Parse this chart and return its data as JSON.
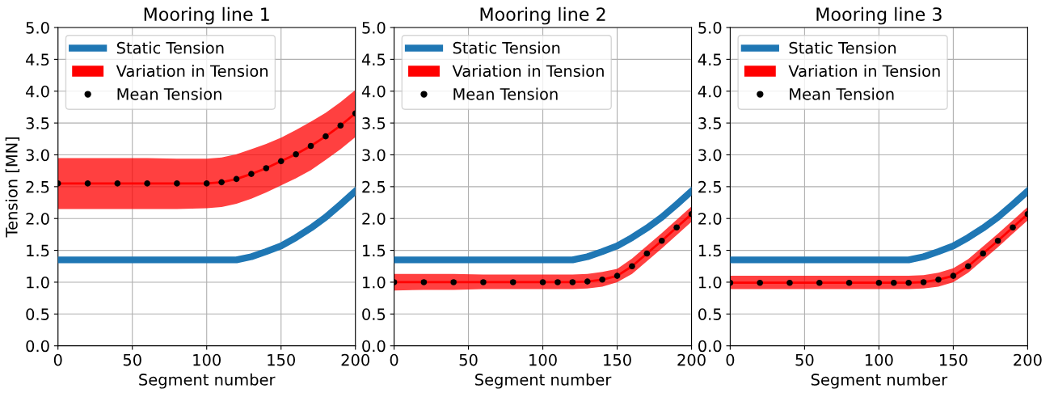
{
  "chart_data": [
    {
      "type": "line",
      "title": "Mooring line 1",
      "xlabel": "Segment number",
      "ylabel": "Tension [MN]",
      "x": [
        0,
        20,
        40,
        60,
        80,
        100,
        110,
        120,
        130,
        140,
        150,
        160,
        170,
        180,
        190,
        200
      ],
      "xlim": [
        0,
        200
      ],
      "xticks": [
        0,
        50,
        100,
        150,
        200
      ],
      "ylim": [
        0,
        5
      ],
      "yticks": [
        {
          "value": 0,
          "label": "0.0"
        },
        0.5,
        {
          "value": 1,
          "label": "1.0"
        },
        1.5,
        {
          "value": 2,
          "label": "2.0"
        },
        2.5,
        {
          "value": 3,
          "label": "3.0"
        },
        3.5,
        {
          "value": 4,
          "label": "4.0"
        },
        4.5,
        {
          "value": 5,
          "label": "5.0"
        }
      ],
      "grid": true,
      "legend": "top left",
      "series": [
        {
          "name": "Static Tension",
          "color": "#1f77b4",
          "values": [
            1.35,
            1.35,
            1.35,
            1.35,
            1.35,
            1.35,
            1.35,
            1.35,
            1.4,
            1.48,
            1.57,
            1.7,
            1.85,
            2.02,
            2.22,
            2.43
          ]
        },
        {
          "name": "Variation in Tension",
          "color": "#ff0000",
          "values": [
            2.55,
            2.55,
            2.55,
            2.55,
            2.55,
            2.55,
            2.57,
            2.62,
            2.7,
            2.79,
            2.9,
            3.01,
            3.14,
            3.29,
            3.46,
            3.65
          ],
          "lower": [
            2.15,
            2.15,
            2.15,
            2.15,
            2.15,
            2.16,
            2.18,
            2.23,
            2.31,
            2.41,
            2.52,
            2.63,
            2.76,
            2.92,
            3.09,
            3.28
          ],
          "upper": [
            2.95,
            2.95,
            2.95,
            2.95,
            2.94,
            2.94,
            2.96,
            3.01,
            3.09,
            3.17,
            3.27,
            3.39,
            3.52,
            3.66,
            3.83,
            4.02
          ]
        },
        {
          "name": "Mean Tension",
          "type": "scatter",
          "color": "#000000",
          "marker": "circle",
          "values": [
            2.55,
            2.55,
            2.55,
            2.55,
            2.55,
            2.55,
            2.57,
            2.62,
            2.7,
            2.79,
            2.9,
            3.01,
            3.14,
            3.29,
            3.46,
            3.65
          ]
        }
      ]
    },
    {
      "type": "line",
      "title": "Mooring line 2",
      "xlabel": "Segment number",
      "x": [
        0,
        20,
        40,
        60,
        80,
        100,
        110,
        120,
        130,
        140,
        150,
        160,
        170,
        180,
        190,
        200
      ],
      "xlim": [
        0,
        200
      ],
      "xticks": [
        0,
        50,
        100,
        150,
        200
      ],
      "ylim": [
        0,
        5
      ],
      "yticks": [
        {
          "value": 0,
          "label": "0.0"
        },
        0.5,
        {
          "value": 1,
          "label": "1.0"
        },
        1.5,
        {
          "value": 2,
          "label": "2.0"
        },
        2.5,
        {
          "value": 3,
          "label": "3.0"
        },
        3.5,
        {
          "value": 4,
          "label": "4.0"
        },
        4.5,
        {
          "value": 5,
          "label": "5.0"
        }
      ],
      "grid": true,
      "legend": "top left",
      "series": [
        {
          "name": "Static Tension",
          "color": "#1f77b4",
          "values": [
            1.35,
            1.35,
            1.35,
            1.35,
            1.35,
            1.35,
            1.35,
            1.35,
            1.4,
            1.48,
            1.57,
            1.7,
            1.85,
            2.02,
            2.22,
            2.43
          ]
        },
        {
          "name": "Variation in Tension",
          "color": "#ff0000",
          "values": [
            1.0,
            1.0,
            1.0,
            1.0,
            1.0,
            1.0,
            1.0,
            1.0,
            1.01,
            1.04,
            1.1,
            1.25,
            1.45,
            1.65,
            1.86,
            2.07
          ],
          "lower": [
            0.87,
            0.88,
            0.88,
            0.89,
            0.89,
            0.89,
            0.89,
            0.89,
            0.9,
            0.93,
            1.0,
            1.13,
            1.33,
            1.53,
            1.74,
            1.95
          ],
          "upper": [
            1.13,
            1.13,
            1.13,
            1.12,
            1.12,
            1.12,
            1.12,
            1.12,
            1.13,
            1.16,
            1.21,
            1.37,
            1.57,
            1.77,
            1.98,
            2.19
          ]
        },
        {
          "name": "Mean Tension",
          "type": "scatter",
          "color": "#000000",
          "marker": "circle",
          "values": [
            1.0,
            1.0,
            1.0,
            1.0,
            1.0,
            1.0,
            1.0,
            1.0,
            1.01,
            1.04,
            1.1,
            1.25,
            1.45,
            1.65,
            1.86,
            2.07
          ]
        }
      ]
    },
    {
      "type": "line",
      "title": "Mooring line 3",
      "xlabel": "Segment number",
      "x": [
        0,
        20,
        40,
        60,
        80,
        100,
        110,
        120,
        130,
        140,
        150,
        160,
        170,
        180,
        190,
        200
      ],
      "xlim": [
        0,
        200
      ],
      "xticks": [
        0,
        50,
        100,
        150,
        200
      ],
      "ylim": [
        0,
        5
      ],
      "yticks": [
        {
          "value": 0,
          "label": "0.0"
        },
        0.5,
        {
          "value": 1,
          "label": "1.0"
        },
        1.5,
        {
          "value": 2,
          "label": "2.0"
        },
        2.5,
        {
          "value": 3,
          "label": "3.0"
        },
        3.5,
        {
          "value": 4,
          "label": "4.0"
        },
        4.5,
        {
          "value": 5,
          "label": "5.0"
        }
      ],
      "grid": true,
      "legend": "top left",
      "series": [
        {
          "name": "Static Tension",
          "color": "#1f77b4",
          "values": [
            1.35,
            1.35,
            1.35,
            1.35,
            1.35,
            1.35,
            1.35,
            1.35,
            1.4,
            1.48,
            1.57,
            1.7,
            1.85,
            2.02,
            2.22,
            2.43
          ]
        },
        {
          "name": "Variation in Tension",
          "color": "#ff0000",
          "values": [
            0.99,
            0.99,
            0.99,
            0.99,
            0.99,
            0.99,
            0.99,
            0.99,
            1.0,
            1.04,
            1.1,
            1.25,
            1.45,
            1.65,
            1.86,
            2.07
          ],
          "lower": [
            0.89,
            0.89,
            0.89,
            0.89,
            0.89,
            0.89,
            0.89,
            0.89,
            0.9,
            0.93,
            1.0,
            1.15,
            1.35,
            1.55,
            1.76,
            1.97
          ],
          "upper": [
            1.1,
            1.1,
            1.1,
            1.1,
            1.1,
            1.1,
            1.1,
            1.1,
            1.11,
            1.15,
            1.22,
            1.36,
            1.56,
            1.76,
            1.97,
            2.18
          ]
        },
        {
          "name": "Mean Tension",
          "type": "scatter",
          "color": "#000000",
          "marker": "circle",
          "values": [
            0.99,
            0.99,
            0.99,
            0.99,
            0.99,
            0.99,
            0.99,
            0.99,
            1.0,
            1.04,
            1.1,
            1.25,
            1.45,
            1.65,
            1.86,
            2.07
          ]
        }
      ]
    }
  ]
}
